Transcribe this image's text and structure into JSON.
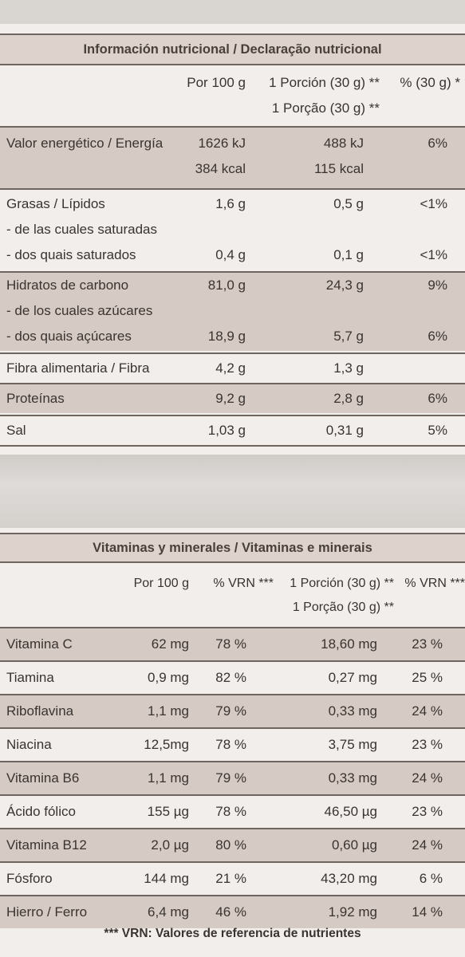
{
  "nutrition": {
    "title": "Información nutricional / Declaração nutricional",
    "col_per100": "Por 100 g",
    "col_portion_es": "1 Porción (30 g) **",
    "col_portion_pt": "1 Porção (30 g) **",
    "col_pct": "% (30 g) *",
    "energy": {
      "label": "Valor energético / Energía",
      "kj100": "1626 kJ",
      "kcal100": "384 kcal",
      "kjp": "488 kJ",
      "kcalp": "115 kcal",
      "pct": "6%"
    },
    "fat": {
      "label": "Grasas / Lípidos",
      "v100": "1,6 g",
      "vp": "0,5 g",
      "pct": "<1%",
      "sub_es": "- de las cuales saturadas",
      "sub_pt": "- dos quais saturados",
      "sat100": "0,4 g",
      "satp": "0,1 g",
      "satpct": "<1%"
    },
    "carbs": {
      "label": "Hidratos de carbono",
      "v100": "81,0 g",
      "vp": "24,3 g",
      "pct": "9%",
      "sub_es": "- de los cuales azúcares",
      "sub_pt": "- dos quais açúcares",
      "sug100": "18,9 g",
      "sugp": "5,7 g",
      "sugpct": "6%"
    },
    "fiber": {
      "label": "Fibra alimentaria / Fibra",
      "v100": "4,2 g",
      "vp": "1,3 g"
    },
    "protein": {
      "label": "Proteínas",
      "v100": "9,2 g",
      "vp": "2,8 g",
      "pct": "6%"
    },
    "salt": {
      "label": "Sal",
      "v100": "1,03 g",
      "vp": "0,31 g",
      "pct": "5%"
    }
  },
  "vitamins": {
    "title": "Vitaminas y minerales / Vitaminas e minerais",
    "col_per100": "Por 100 g",
    "col_vrn": "% VRN ***",
    "col_portion_es": "1 Porción (30 g) **",
    "col_portion_pt": "1 Porção (30 g) **",
    "col_vrn2": "% VRN ***",
    "rows": [
      {
        "name": "Vitamina C",
        "v100": "62 mg",
        "vrn": "78 %",
        "vp": "18,60 mg",
        "vrnp": "23 %"
      },
      {
        "name": "Tiamina",
        "v100": "0,9 mg",
        "vrn": "82 %",
        "vp": "0,27 mg",
        "vrnp": "25 %"
      },
      {
        "name": "Riboflavina",
        "v100": "1,1 mg",
        "vrn": "79 %",
        "vp": "0,33 mg",
        "vrnp": "24 %"
      },
      {
        "name": "Niacina",
        "v100": "12,5mg",
        "vrn": "78 %",
        "vp": "3,75 mg",
        "vrnp": "23 %"
      },
      {
        "name": "Vitamina B6",
        "v100": "1,1 mg",
        "vrn": "79 %",
        "vp": "0,33 mg",
        "vrnp": "24 %"
      },
      {
        "name": "Ácido fólico",
        "v100": "155 µg",
        "vrn": "78 %",
        "vp": "46,50 µg",
        "vrnp": "23 %"
      },
      {
        "name": "Vitamina B12",
        "v100": "2,0 µg",
        "vrn": "80 %",
        "vp": "0,60 µg",
        "vrnp": "24 %"
      },
      {
        "name": "Fósforo",
        "v100": "144 mg",
        "vrn": "21 %",
        "vp": "43,20 mg",
        "vrnp": "6 %"
      },
      {
        "name": "Hierro / Ferro",
        "v100": "6,4 mg",
        "vrn": "46 %",
        "vp": "1,92 mg",
        "vrnp": "14 %"
      }
    ],
    "footnote": "*** VRN: Valores de referencia de nutrientes"
  }
}
